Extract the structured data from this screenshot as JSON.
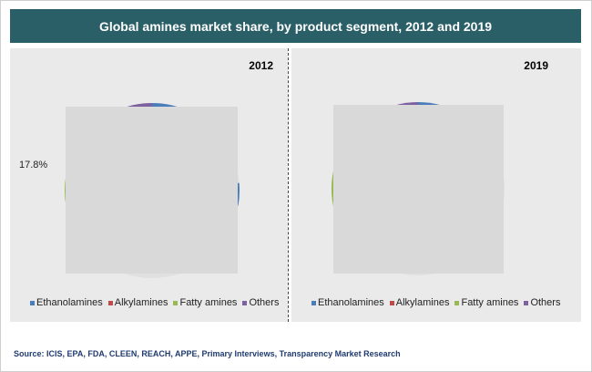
{
  "header": {
    "title": "Global amines market share, by product segment, 2012 and 2019"
  },
  "colors": {
    "ethanolamines": "#4a7ebb",
    "alkylamines": "#be4b48",
    "fatty_amines": "#98b954",
    "others": "#7d60a0",
    "overlay": "#d9d9d9"
  },
  "chart_data": [
    {
      "type": "pie",
      "title": "2012",
      "legend_position": "bottom",
      "categories": [
        "Ethanolamines",
        "Alkylamines",
        "Fatty amines",
        "Others"
      ],
      "values": [
        null,
        null,
        17.8,
        null
      ],
      "data_labels": [
        "",
        "",
        "17.8%",
        ""
      ]
    },
    {
      "type": "pie",
      "title": "2019",
      "legend_position": "bottom",
      "categories": [
        "Ethanolamines",
        "Alkylamines",
        "Fatty amines",
        "Others"
      ],
      "values": [
        null,
        null,
        null,
        null
      ],
      "data_labels": [
        "",
        "",
        "",
        ""
      ]
    }
  ],
  "source": "Source: ICIS, EPA, FDA, CLEEN, REACH, APPE, Primary Interviews, Transparency Market Research"
}
